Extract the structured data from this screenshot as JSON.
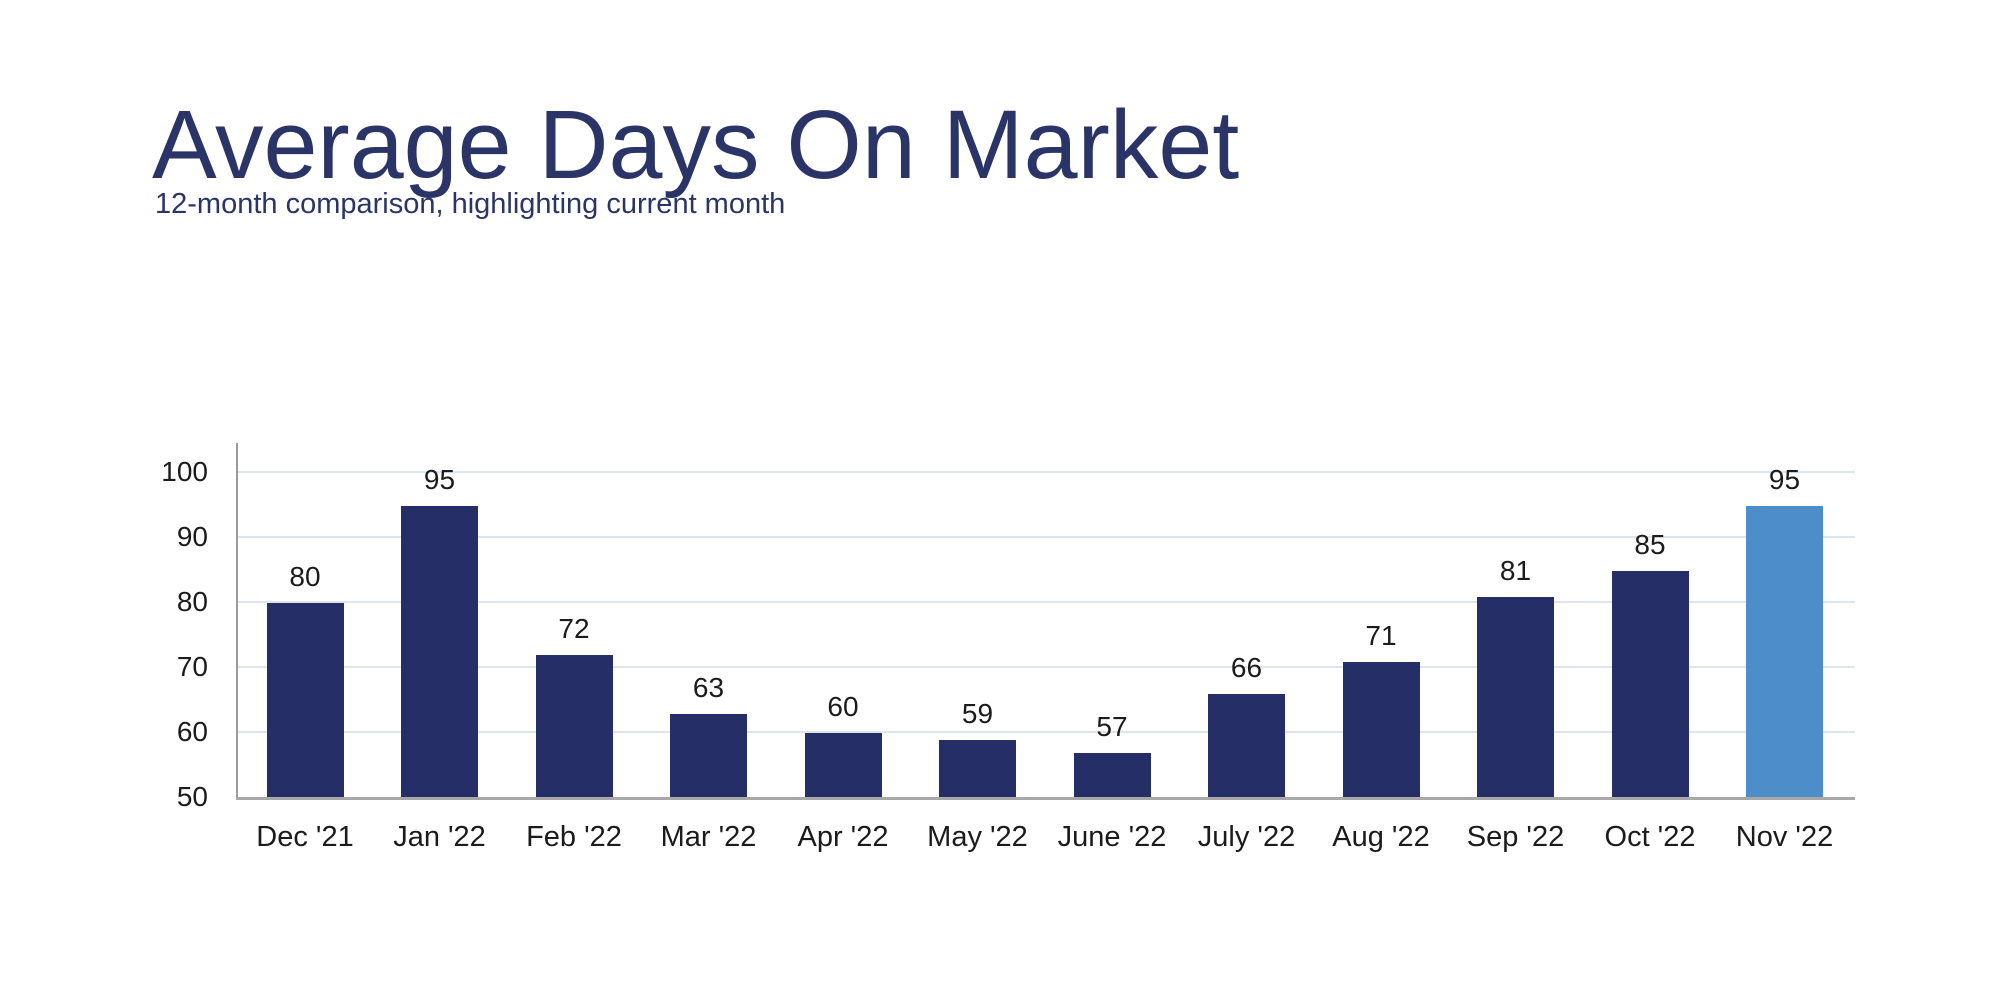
{
  "header": {
    "title": "Average Days On Market",
    "subtitle": "12-month comparison, highlighting current month"
  },
  "colors": {
    "title_text": "#2b3467",
    "bar": "#252e66",
    "bar_highlight": "#4d8dca",
    "gridline": "#dde5ee",
    "axis_line": "#9b9b9b",
    "baseline": "#a8a8a8",
    "label_text": "#1b1b1b"
  },
  "chart_data": {
    "type": "bar",
    "title": "Average Days On Market",
    "subtitle": "12-month comparison, highlighting current month",
    "categories": [
      "Dec '21",
      "Jan '22",
      "Feb '22",
      "Mar '22",
      "Apr '22",
      "May '22",
      "June '22",
      "July '22",
      "Aug '22",
      "Sep '22",
      "Oct '22",
      "Nov '22"
    ],
    "values": [
      80,
      95,
      72,
      63,
      60,
      59,
      57,
      66,
      71,
      81,
      85,
      95
    ],
    "data_labels_shown": true,
    "highlighted_index": 11,
    "highlighted_category": "Nov '22",
    "bar_color": "#252e66",
    "highlight_color": "#4d8dca",
    "xlabel": "",
    "ylabel": "",
    "ylim": [
      50,
      100
    ],
    "yticks": [
      50,
      60,
      70,
      80,
      90,
      100
    ],
    "grid": true,
    "legend": false
  }
}
